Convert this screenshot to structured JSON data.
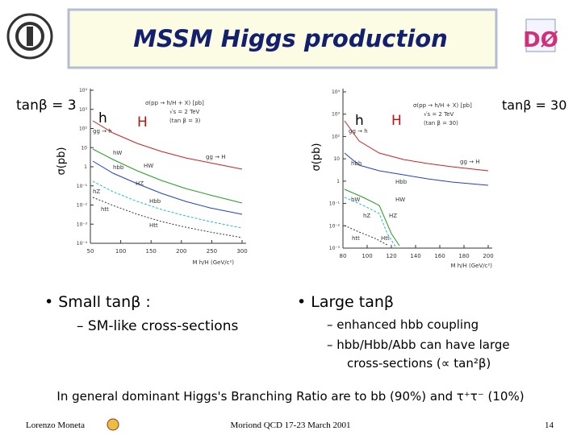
{
  "header": {
    "title": "MSSM Higgs production"
  },
  "left_plot": {
    "tan_beta": "tanβ = 3",
    "y_label": "σ(pb)",
    "x_label": "M h/H (GeV/c²)",
    "legend": [
      "σ(pp → h/H + X) [pb]",
      "√s = 2 TeV",
      "(tan β = 3)"
    ],
    "higgs": [
      "h",
      "H"
    ],
    "curves": [
      "gg → h",
      "hW",
      "hbb",
      "hZ",
      "htt",
      "gg → H",
      "HW",
      "HZ",
      "Hbb",
      "Htt"
    ],
    "yticks": [
      "10⁴",
      "10³",
      "10²",
      "10",
      "1",
      "10⁻¹",
      "10⁻²",
      "10⁻³",
      "10⁻⁴"
    ],
    "xticks": [
      "50",
      "100",
      "150",
      "200",
      "250",
      "300"
    ]
  },
  "right_plot": {
    "tan_beta": "tanβ = 30",
    "y_label": "σ(pb)",
    "x_label": "M h/H (GeV/c²)",
    "legend": [
      "σ(pp → h/H + X) [pb]",
      "√s = 2 TeV",
      "(tan β = 30)"
    ],
    "higgs": [
      "h",
      "H"
    ],
    "curves": [
      "gg → h",
      "hbb",
      "hW",
      "hZ",
      "htt",
      "gg → H",
      "Hbb",
      "HW",
      "HZ",
      "Htt"
    ],
    "yticks": [
      "10⁴",
      "10³",
      "10²",
      "10",
      "1",
      "10⁻¹",
      "10⁻²",
      "10⁻³"
    ],
    "xticks": [
      "80",
      "100",
      "120",
      "140",
      "160",
      "180",
      "200"
    ]
  },
  "bullets": {
    "small": {
      "head": "• Small tanβ :",
      "items": [
        "– SM-like cross-sections"
      ]
    },
    "large": {
      "head": "• Large tanβ",
      "items": [
        "– enhanced hbb coupling",
        "– hbb/Hbb/Abb can have large",
        "cross-sections (∝ tan²β)"
      ]
    }
  },
  "summary": "In general dominant Higgs's Branching Ratio are to bb (90%) and τ⁺τ⁻ (10%)",
  "footer": {
    "author": "Lorenzo Moneta",
    "conference": "Moriond QCD 17-23 March 2001",
    "page": "14"
  }
}
